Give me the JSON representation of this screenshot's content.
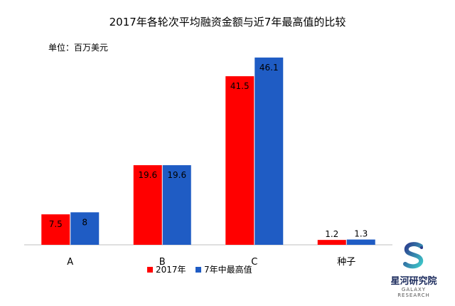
{
  "title": "2017年各轮次平均融资金额与近7年最高值的比较",
  "unit": "单位：百万美元",
  "logo": {
    "name": "星河研究院",
    "sub": "GALAXY RESEARCH",
    "icon": "galaxy-s-logo"
  },
  "chart_data": {
    "type": "bar",
    "title": "2017年各轮次平均融资金额与近7年最高值的比较",
    "ylabel": "单位：百万美元",
    "categories": [
      "A",
      "B",
      "C",
      "种子"
    ],
    "series": [
      {
        "name": "2017年",
        "values": [
          7.5,
          19.6,
          41.5,
          1.2
        ],
        "color": "#ff0000"
      },
      {
        "name": "7年中最高值",
        "values": [
          8,
          19.6,
          46.1,
          1.3
        ],
        "color": "#1f5cc4"
      }
    ],
    "ylim": [
      0,
      48
    ],
    "grid": false,
    "legend": "bottom"
  }
}
